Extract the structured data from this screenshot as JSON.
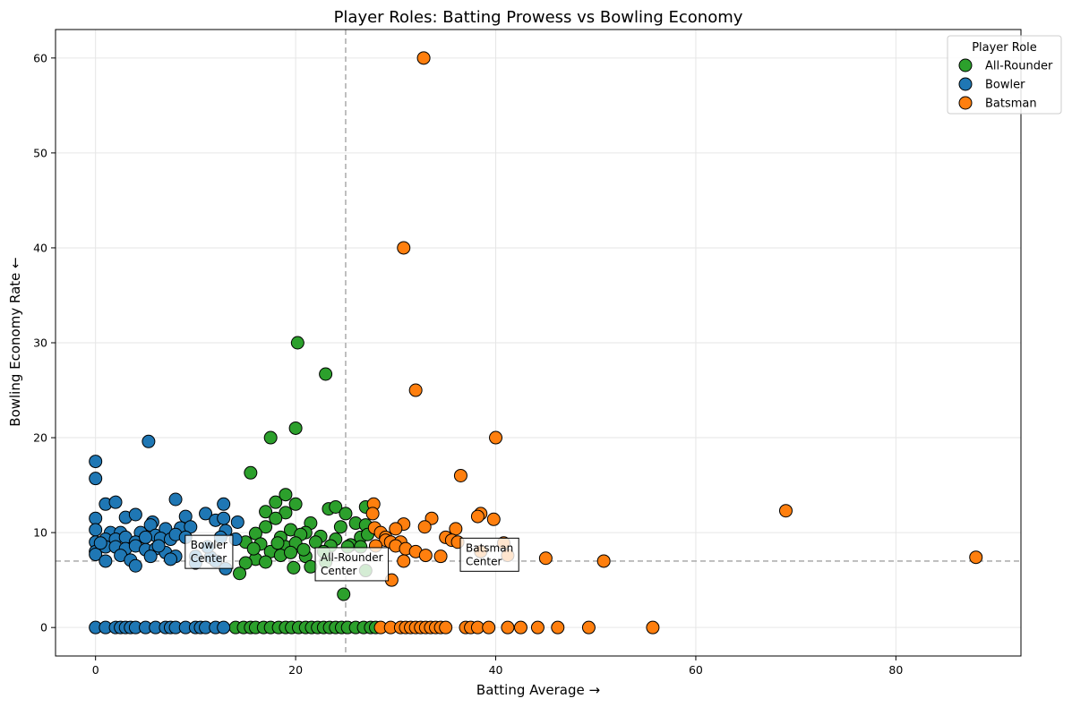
{
  "chart_data": {
    "type": "scatter",
    "title": "Player Roles: Batting Prowess vs Bowling Economy",
    "xlabel": "Batting Average →",
    "ylabel": "Bowling Economy Rate ←",
    "xlim": [
      -4,
      92.5
    ],
    "ylim": [
      -3,
      63
    ],
    "xticks": [
      0,
      20,
      40,
      60,
      80
    ],
    "yticks": [
      0,
      10,
      20,
      30,
      40,
      50,
      60
    ],
    "grid": true,
    "reference_lines": {
      "x": 25,
      "y": 7
    },
    "legend": {
      "title": "Player Role",
      "placement": "top-right",
      "entries": [
        {
          "label": "All-Rounder",
          "color": "#2ca02c"
        },
        {
          "label": "Bowler",
          "color": "#1f77b4"
        },
        {
          "label": "Batsman",
          "color": "#ff7f0e"
        }
      ]
    },
    "annotations": [
      {
        "text": "Bowler\nCenter",
        "x": 9.5,
        "y": 8.3
      },
      {
        "text": "All-Rounder\nCenter",
        "x": 22.5,
        "y": 7.0
      },
      {
        "text": "Batsman\nCenter",
        "x": 37.0,
        "y": 8.0
      }
    ],
    "series": [
      {
        "name": "All-Rounder",
        "color": "#2ca02c",
        "points": [
          [
            20.2,
            30.0
          ],
          [
            23.0,
            26.7
          ],
          [
            20.0,
            21.0
          ],
          [
            17.5,
            20.0
          ],
          [
            15.5,
            16.3
          ],
          [
            19.0,
            14.0
          ],
          [
            18.0,
            13.2
          ],
          [
            20.0,
            13.0
          ],
          [
            23.3,
            12.5
          ],
          [
            24.0,
            12.7
          ],
          [
            17.0,
            12.2
          ],
          [
            19.0,
            12.1
          ],
          [
            27.0,
            12.7
          ],
          [
            25.0,
            12.0
          ],
          [
            18.0,
            11.5
          ],
          [
            21.5,
            11.0
          ],
          [
            24.5,
            10.6
          ],
          [
            26.0,
            11.0
          ],
          [
            27.0,
            10.8
          ],
          [
            17.0,
            10.6
          ],
          [
            19.5,
            10.3
          ],
          [
            16.0,
            9.9
          ],
          [
            21.0,
            10.0
          ],
          [
            22.5,
            9.6
          ],
          [
            18.5,
            9.5
          ],
          [
            20.5,
            9.8
          ],
          [
            24.0,
            9.3
          ],
          [
            26.5,
            9.5
          ],
          [
            27.2,
            9.8
          ],
          [
            15.0,
            9.0
          ],
          [
            16.5,
            8.8
          ],
          [
            19.0,
            8.5
          ],
          [
            20.0,
            8.9
          ],
          [
            22.0,
            9.0
          ],
          [
            23.5,
            8.6
          ],
          [
            25.5,
            8.7
          ],
          [
            26.5,
            8.5
          ],
          [
            17.5,
            8.0
          ],
          [
            18.5,
            7.6
          ],
          [
            19.5,
            7.9
          ],
          [
            21.0,
            7.5
          ],
          [
            16.0,
            7.2
          ],
          [
            17.0,
            6.9
          ],
          [
            21.5,
            6.4
          ],
          [
            23.0,
            6.9
          ],
          [
            19.8,
            6.3
          ],
          [
            15.0,
            6.8
          ],
          [
            14.4,
            5.7
          ],
          [
            27.0,
            6.0
          ],
          [
            24.8,
            3.5
          ],
          [
            15.8,
            8.3
          ],
          [
            18.2,
            8.9
          ],
          [
            20.8,
            8.2
          ],
          [
            22.8,
            8.0
          ],
          [
            25.2,
            8.5
          ],
          [
            14.0,
            0
          ],
          [
            14.8,
            0
          ],
          [
            15.5,
            0
          ],
          [
            16.0,
            0
          ],
          [
            16.8,
            0
          ],
          [
            17.5,
            0
          ],
          [
            18.3,
            0
          ],
          [
            19.0,
            0
          ],
          [
            19.6,
            0
          ],
          [
            20.3,
            0
          ],
          [
            21.0,
            0
          ],
          [
            21.6,
            0
          ],
          [
            22.2,
            0
          ],
          [
            22.8,
            0
          ],
          [
            23.4,
            0
          ],
          [
            24.0,
            0
          ],
          [
            24.6,
            0
          ],
          [
            25.2,
            0
          ],
          [
            26.0,
            0
          ],
          [
            26.8,
            0
          ],
          [
            27.5,
            0
          ],
          [
            28.0,
            0
          ]
        ]
      },
      {
        "name": "Bowler",
        "color": "#1f77b4",
        "points": [
          [
            0.0,
            17.5
          ],
          [
            0.0,
            15.7
          ],
          [
            5.3,
            19.6
          ],
          [
            1.0,
            13.0
          ],
          [
            2.0,
            13.2
          ],
          [
            8.0,
            13.5
          ],
          [
            12.8,
            13.0
          ],
          [
            0.0,
            11.5
          ],
          [
            3.0,
            11.6
          ],
          [
            4.0,
            11.9
          ],
          [
            5.7,
            11.1
          ],
          [
            9.0,
            11.7
          ],
          [
            11.0,
            12.0
          ],
          [
            12.0,
            11.3
          ],
          [
            12.8,
            11.5
          ],
          [
            14.2,
            11.1
          ],
          [
            0.0,
            10.3
          ],
          [
            1.5,
            10.0
          ],
          [
            2.5,
            10.0
          ],
          [
            4.5,
            10.0
          ],
          [
            5.5,
            10.8
          ],
          [
            6.0,
            9.7
          ],
          [
            7.0,
            10.4
          ],
          [
            8.5,
            10.5
          ],
          [
            9.5,
            10.6
          ],
          [
            13.0,
            10.2
          ],
          [
            0.0,
            9.0
          ],
          [
            1.0,
            9.3
          ],
          [
            2.0,
            9.3
          ],
          [
            3.0,
            9.5
          ],
          [
            4.0,
            9.0
          ],
          [
            5.0,
            9.5
          ],
          [
            6.5,
            9.4
          ],
          [
            7.5,
            9.3
          ],
          [
            8.0,
            9.8
          ],
          [
            9.0,
            9.5
          ],
          [
            12.5,
            9.5
          ],
          [
            14.0,
            9.3
          ],
          [
            0.0,
            8.0
          ],
          [
            1.0,
            8.5
          ],
          [
            2.0,
            8.5
          ],
          [
            3.0,
            8.3
          ],
          [
            4.0,
            8.6
          ],
          [
            5.0,
            8.2
          ],
          [
            6.0,
            8.3
          ],
          [
            7.0,
            7.9
          ],
          [
            8.0,
            7.5
          ],
          [
            10.0,
            7.5
          ],
          [
            11.5,
            7.4
          ],
          [
            0.0,
            7.7
          ],
          [
            1.0,
            7.0
          ],
          [
            2.5,
            7.6
          ],
          [
            3.5,
            7.1
          ],
          [
            4.0,
            6.5
          ],
          [
            5.5,
            7.5
          ],
          [
            7.5,
            7.2
          ],
          [
            10.0,
            6.8
          ],
          [
            12.0,
            7.0
          ],
          [
            13.0,
            6.2
          ],
          [
            0.5,
            8.9
          ],
          [
            6.3,
            8.6
          ],
          [
            11.2,
            8.5
          ],
          [
            0.0,
            0
          ],
          [
            1.0,
            0
          ],
          [
            2.0,
            0
          ],
          [
            2.5,
            0
          ],
          [
            3.0,
            0
          ],
          [
            3.5,
            0
          ],
          [
            4.0,
            0
          ],
          [
            5.0,
            0
          ],
          [
            6.0,
            0
          ],
          [
            7.0,
            0
          ],
          [
            7.5,
            0
          ],
          [
            8.0,
            0
          ],
          [
            9.0,
            0
          ],
          [
            10.0,
            0
          ],
          [
            10.5,
            0
          ],
          [
            11.0,
            0
          ],
          [
            12.0,
            0
          ],
          [
            12.8,
            0
          ]
        ]
      },
      {
        "name": "Batsman",
        "color": "#ff7f0e",
        "points": [
          [
            32.8,
            60.0
          ],
          [
            30.8,
            40.0
          ],
          [
            32.0,
            25.0
          ],
          [
            40.0,
            20.0
          ],
          [
            36.5,
            16.0
          ],
          [
            27.8,
            13.0
          ],
          [
            27.7,
            12.0
          ],
          [
            38.5,
            12.0
          ],
          [
            38.2,
            11.7
          ],
          [
            39.8,
            11.4
          ],
          [
            33.6,
            11.5
          ],
          [
            30.8,
            10.9
          ],
          [
            32.9,
            10.6
          ],
          [
            27.9,
            10.5
          ],
          [
            30.0,
            10.4
          ],
          [
            36.0,
            10.4
          ],
          [
            28.5,
            10.0
          ],
          [
            29.0,
            9.5
          ],
          [
            35.0,
            9.5
          ],
          [
            35.6,
            9.2
          ],
          [
            36.2,
            9.0
          ],
          [
            29.0,
            9.2
          ],
          [
            29.5,
            9.0
          ],
          [
            30.5,
            9.0
          ],
          [
            40.8,
            8.9
          ],
          [
            28.0,
            8.6
          ],
          [
            30.0,
            8.6
          ],
          [
            31.0,
            8.3
          ],
          [
            32.0,
            8.0
          ],
          [
            38.5,
            8.0
          ],
          [
            41.2,
            7.6
          ],
          [
            33.0,
            7.6
          ],
          [
            34.5,
            7.5
          ],
          [
            30.8,
            7.0
          ],
          [
            45.0,
            7.3
          ],
          [
            50.8,
            7.0
          ],
          [
            88.0,
            7.4
          ],
          [
            69.0,
            12.3
          ],
          [
            29.6,
            5.0
          ],
          [
            28.5,
            0
          ],
          [
            29.5,
            0
          ],
          [
            30.5,
            0
          ],
          [
            31.0,
            0
          ],
          [
            31.5,
            0
          ],
          [
            32.0,
            0
          ],
          [
            32.5,
            0
          ],
          [
            33.0,
            0
          ],
          [
            33.5,
            0
          ],
          [
            34.0,
            0
          ],
          [
            34.5,
            0
          ],
          [
            35.0,
            0
          ],
          [
            37.0,
            0
          ],
          [
            37.5,
            0
          ],
          [
            38.2,
            0
          ],
          [
            39.3,
            0
          ],
          [
            41.2,
            0
          ],
          [
            42.5,
            0
          ],
          [
            44.2,
            0
          ],
          [
            46.2,
            0
          ],
          [
            49.3,
            0
          ],
          [
            55.7,
            0
          ]
        ]
      }
    ]
  }
}
